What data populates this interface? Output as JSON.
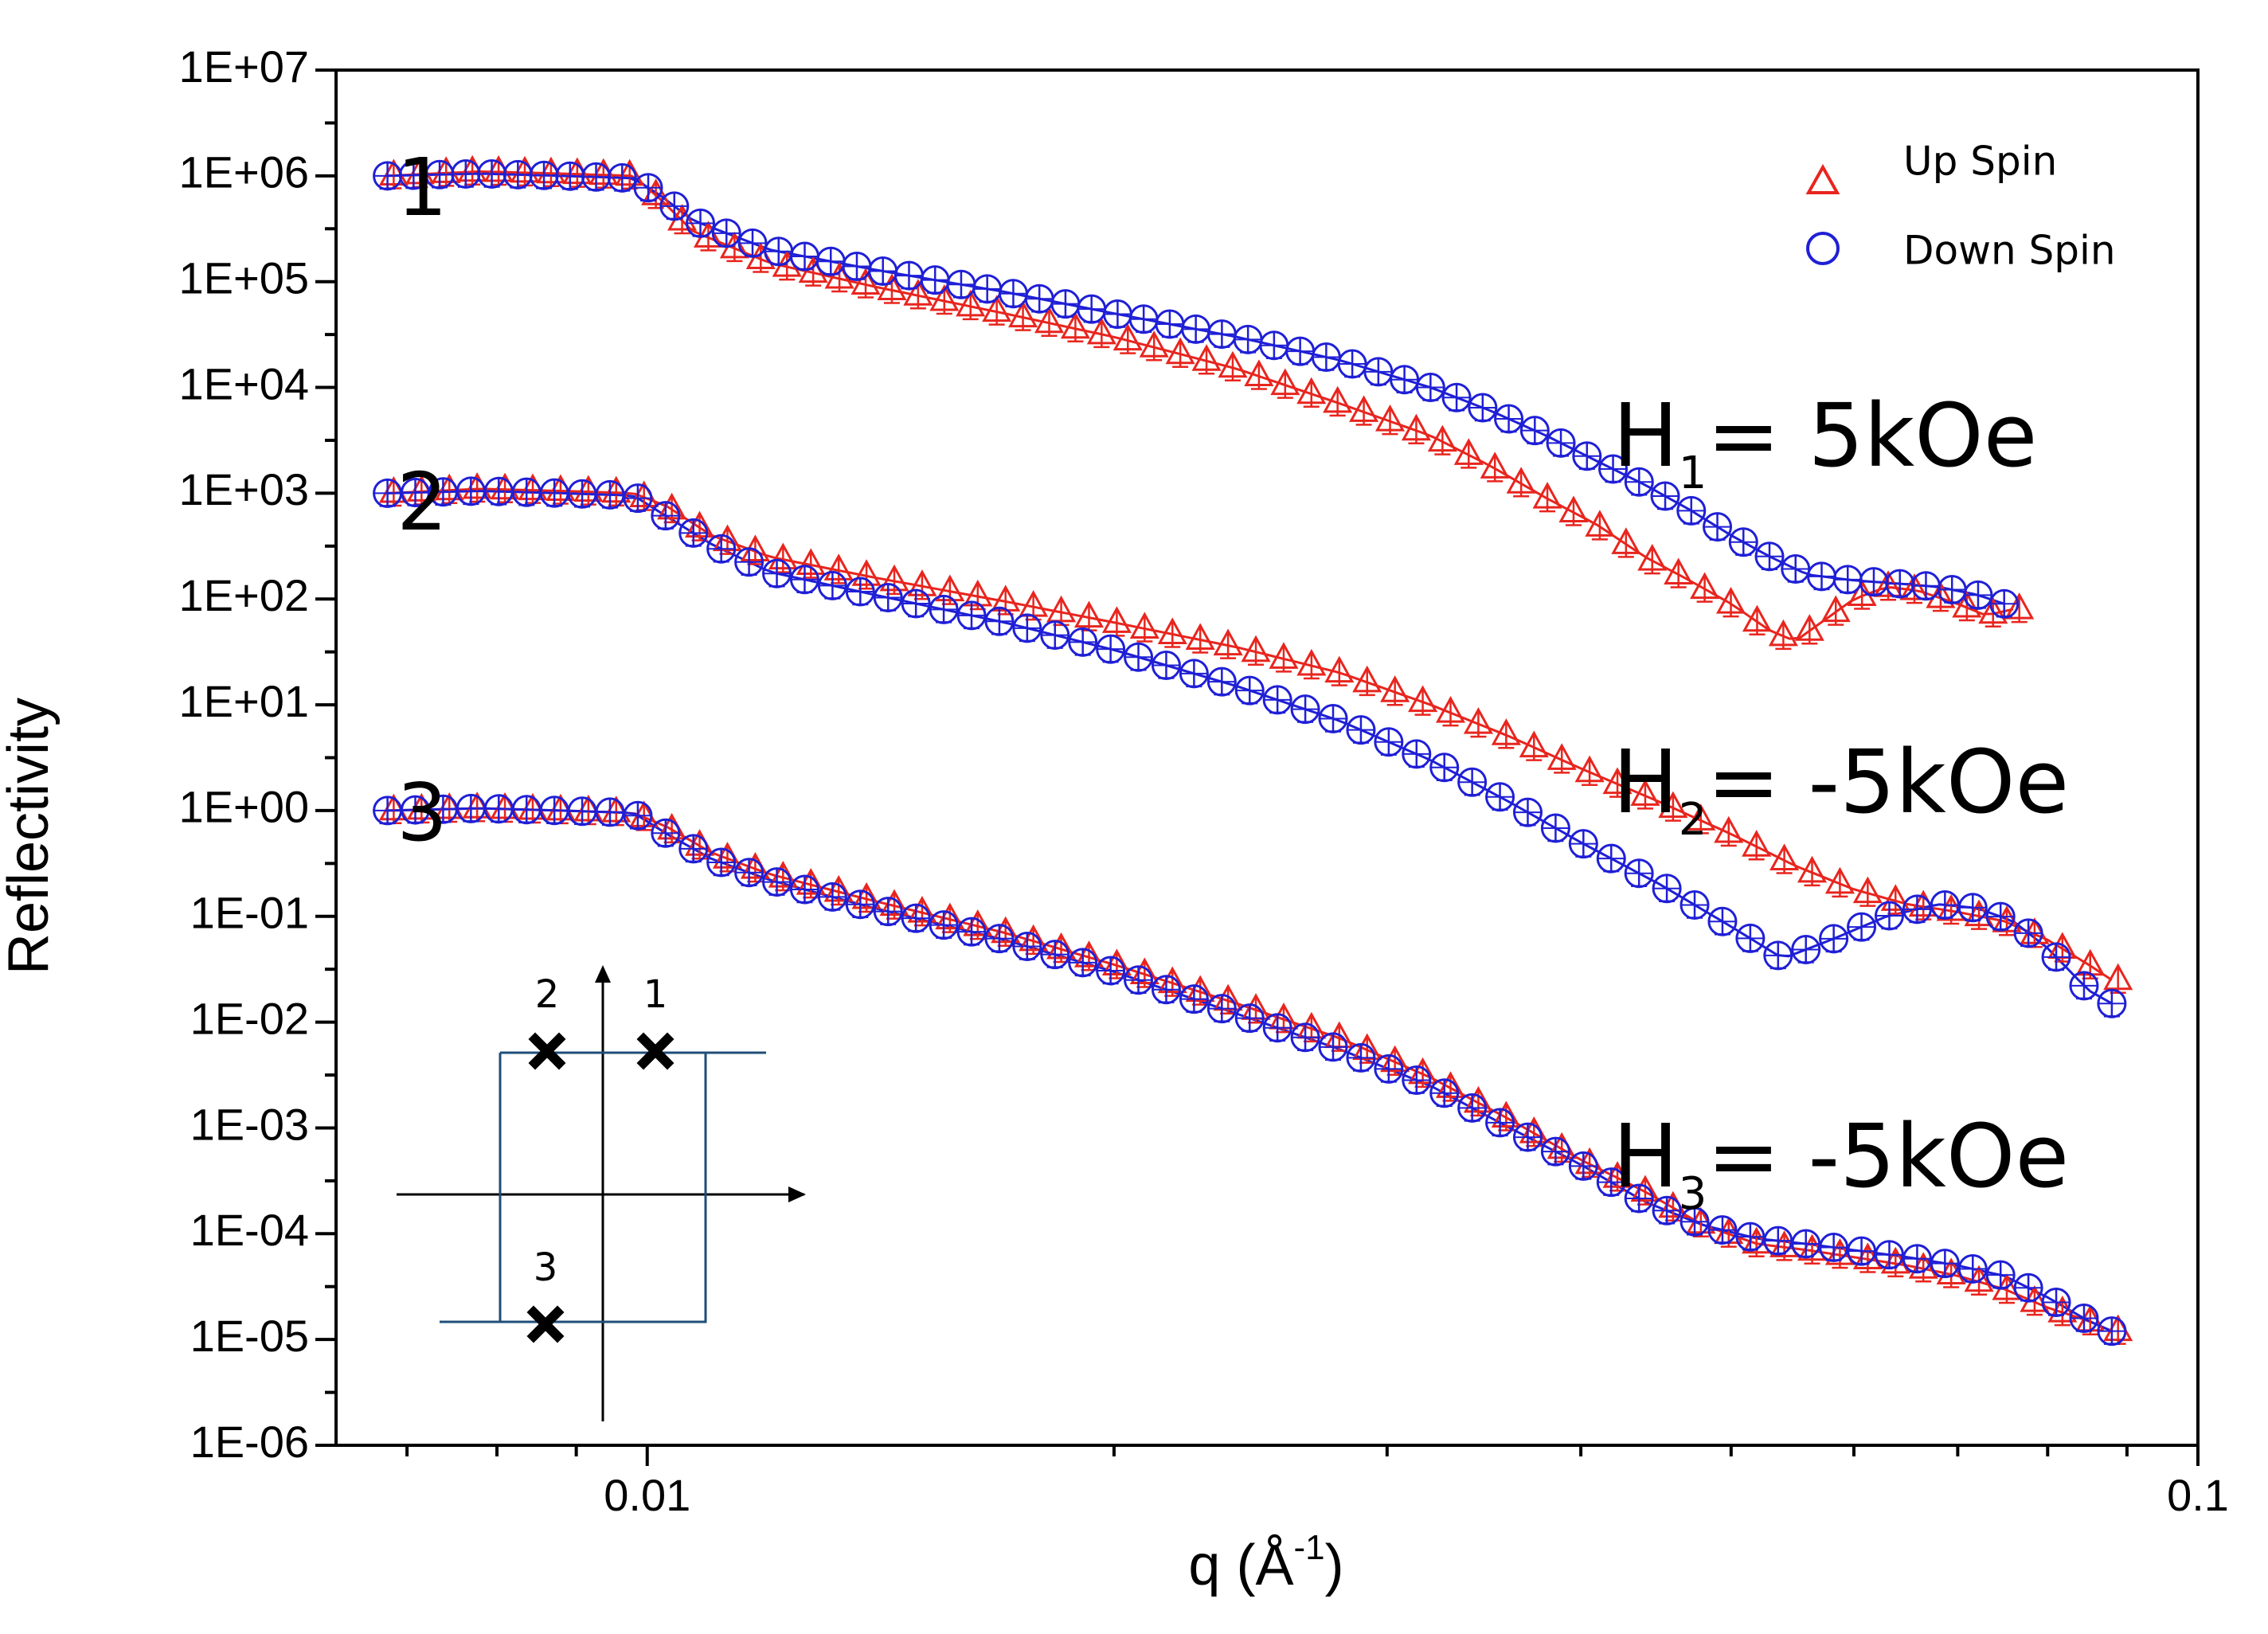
{
  "chart_data": {
    "type": "scatter",
    "xscale": "log",
    "yscale": "log",
    "xlim": [
      0.0063,
      0.1
    ],
    "ylim": [
      1e-06,
      10000000
    ],
    "xlabel": "q (Å",
    "xlabel_sup": "-1",
    "xlabel_close": ")",
    "ylabel": "Reflectivity",
    "x_tick_labels": [
      {
        "value": 0.01,
        "label": "0.01"
      },
      {
        "value": 0.1,
        "label": "0.1"
      }
    ],
    "y_tick_labels": [
      "1E-06",
      "1E-05",
      "1E-04",
      "1E-03",
      "1E-02",
      "1E-01",
      "1E+00",
      "1E+01",
      "1E+02",
      "1E+03",
      "1E+04",
      "1E+05",
      "1E+06",
      "1E+07"
    ],
    "legend": {
      "position": "top-right",
      "entries": [
        {
          "label": "Up Spin",
          "marker": "triangle",
          "color": "#e8251e"
        },
        {
          "label": "Down Spin",
          "marker": "circle",
          "color": "#1f1fd6"
        }
      ]
    },
    "colors": {
      "up": "#e8251e",
      "down": "#1f1fd6",
      "inset": "#1f4e79"
    },
    "curve_labels": [
      {
        "id": "1",
        "text": "1"
      },
      {
        "id": "2",
        "text": "2"
      },
      {
        "id": "3",
        "text": "3"
      }
    ],
    "field_labels": [
      {
        "main": "H",
        "sub": "1",
        "rest": "= 5kOe"
      },
      {
        "main": "H",
        "sub": "2",
        "rest": "= -5kOe"
      },
      {
        "main": "H",
        "sub": "3",
        "rest": "= -5kOe"
      }
    ],
    "inset": {
      "description": "hysteresis loop sketch",
      "points": [
        {
          "label": "1",
          "quadrant": "upper-right"
        },
        {
          "label": "2",
          "quadrant": "upper-left"
        },
        {
          "label": "3",
          "quadrant": "lower-left"
        }
      ]
    },
    "series_sets": [
      {
        "offset_label": "1",
        "up": {
          "name": "Up Spin",
          "points": [
            [
              0.0068,
              1000000
            ],
            [
              0.0078,
              1100000
            ],
            [
              0.0088,
              1050000
            ],
            [
              0.0098,
              1000000
            ],
            [
              0.0102,
              600000
            ],
            [
              0.0107,
              300000
            ],
            [
              0.012,
              150000
            ],
            [
              0.014,
              90000
            ],
            [
              0.017,
              50000
            ],
            [
              0.02,
              30000
            ],
            [
              0.024,
              15000
            ],
            [
              0.028,
              7000
            ],
            [
              0.032,
              3500
            ],
            [
              0.035,
              1800
            ],
            [
              0.038,
              900
            ],
            [
              0.041,
              500
            ],
            [
              0.044,
              250
            ],
            [
              0.047,
              150
            ],
            [
              0.05,
              90
            ],
            [
              0.053,
              50
            ],
            [
              0.055,
              40
            ],
            [
              0.058,
              70
            ],
            [
              0.06,
              100
            ],
            [
              0.063,
              130
            ],
            [
              0.066,
              120
            ],
            [
              0.07,
              90
            ],
            [
              0.073,
              70
            ],
            [
              0.076,
              80
            ]
          ]
        },
        "down": {
          "name": "Down Spin",
          "points": [
            [
              0.0068,
              1000000
            ],
            [
              0.0078,
              1050000
            ],
            [
              0.0088,
              1000000
            ],
            [
              0.0098,
              950000
            ],
            [
              0.0102,
              650000
            ],
            [
              0.0107,
              380000
            ],
            [
              0.012,
              200000
            ],
            [
              0.014,
              130000
            ],
            [
              0.017,
              80000
            ],
            [
              0.02,
              50000
            ],
            [
              0.024,
              30000
            ],
            [
              0.028,
              18000
            ],
            [
              0.032,
              10000
            ],
            [
              0.035,
              6000
            ],
            [
              0.038,
              3500
            ],
            [
              0.041,
              2000
            ],
            [
              0.044,
              1200
            ],
            [
              0.047,
              700
            ],
            [
              0.05,
              400
            ],
            [
              0.053,
              250
            ],
            [
              0.056,
              170
            ],
            [
              0.06,
              150
            ],
            [
              0.064,
              140
            ],
            [
              0.068,
              130
            ],
            [
              0.072,
              110
            ],
            [
              0.075,
              90
            ]
          ]
        }
      },
      {
        "offset_label": "2",
        "up": {
          "name": "Up Spin",
          "points": [
            [
              0.0068,
              1000
            ],
            [
              0.0078,
              1100
            ],
            [
              0.0088,
              1050
            ],
            [
              0.0098,
              1000
            ],
            [
              0.0103,
              750
            ],
            [
              0.011,
              400
            ],
            [
              0.012,
              250
            ],
            [
              0.014,
              160
            ],
            [
              0.017,
              95
            ],
            [
              0.02,
              60
            ],
            [
              0.024,
              35
            ],
            [
              0.028,
              20
            ],
            [
              0.032,
              10
            ],
            [
              0.036,
              5
            ],
            [
              0.04,
              2.5
            ],
            [
              0.045,
              1.2
            ],
            [
              0.05,
              0.6
            ],
            [
              0.055,
              0.3
            ],
            [
              0.06,
              0.18
            ],
            [
              0.065,
              0.13
            ],
            [
              0.07,
              0.11
            ],
            [
              0.075,
              0.09
            ],
            [
              0.08,
              0.06
            ],
            [
              0.085,
              0.035
            ],
            [
              0.088,
              0.025
            ]
          ]
        },
        "down": {
          "name": "Down Spin",
          "points": [
            [
              0.0068,
              1000
            ],
            [
              0.0078,
              1050
            ],
            [
              0.0088,
              1000
            ],
            [
              0.0098,
              950
            ],
            [
              0.0103,
              600
            ],
            [
              0.011,
              330
            ],
            [
              0.012,
              180
            ],
            [
              0.014,
              110
            ],
            [
              0.017,
              60
            ],
            [
              0.02,
              33
            ],
            [
              0.024,
              15
            ],
            [
              0.028,
              7
            ],
            [
              0.032,
              3
            ],
            [
              0.036,
              1.2
            ],
            [
              0.04,
              0.5
            ],
            [
              0.045,
              0.2
            ],
            [
              0.05,
              0.08
            ],
            [
              0.054,
              0.04
            ],
            [
              0.058,
              0.06
            ],
            [
              0.063,
              0.1
            ],
            [
              0.068,
              0.13
            ],
            [
              0.072,
              0.12
            ],
            [
              0.076,
              0.09
            ],
            [
              0.08,
              0.05
            ],
            [
              0.085,
              0.02
            ],
            [
              0.088,
              0.015
            ]
          ]
        }
      },
      {
        "offset_label": "3",
        "up": {
          "name": "Up Spin",
          "points": [
            [
              0.0068,
              1
            ],
            [
              0.0078,
              1.05
            ],
            [
              0.0088,
              1
            ],
            [
              0.0098,
              0.95
            ],
            [
              0.0103,
              0.7
            ],
            [
              0.011,
              0.4
            ],
            [
              0.012,
              0.25
            ],
            [
              0.014,
              0.14
            ],
            [
              0.017,
              0.07
            ],
            [
              0.02,
              0.035
            ],
            [
              0.024,
              0.015
            ],
            [
              0.028,
              0.007
            ],
            [
              0.032,
              0.003
            ],
            [
              0.036,
              0.0012
            ],
            [
              0.04,
              0.0005
            ],
            [
              0.044,
              0.00025
            ],
            [
              0.048,
              0.00012
            ],
            [
              0.052,
              8e-05
            ],
            [
              0.056,
              7e-05
            ],
            [
              0.06,
              6e-05
            ],
            [
              0.065,
              5e-05
            ],
            [
              0.07,
              4e-05
            ],
            [
              0.075,
              3e-05
            ],
            [
              0.08,
              2e-05
            ],
            [
              0.085,
              1.5e-05
            ],
            [
              0.088,
              1.2e-05
            ]
          ]
        },
        "down": {
          "name": "Down Spin",
          "points": [
            [
              0.0068,
              1
            ],
            [
              0.0078,
              1.05
            ],
            [
              0.0088,
              1
            ],
            [
              0.0098,
              0.95
            ],
            [
              0.0103,
              0.6
            ],
            [
              0.011,
              0.35
            ],
            [
              0.012,
              0.22
            ],
            [
              0.014,
              0.12
            ],
            [
              0.017,
              0.06
            ],
            [
              0.02,
              0.03
            ],
            [
              0.024,
              0.012
            ],
            [
              0.028,
              0.0055
            ],
            [
              0.032,
              0.0025
            ],
            [
              0.036,
              0.001
            ],
            [
              0.04,
              0.00045
            ],
            [
              0.044,
              0.0002
            ],
            [
              0.048,
              0.00012
            ],
            [
              0.052,
              9e-05
            ],
            [
              0.056,
              8e-05
            ],
            [
              0.06,
              7e-05
            ],
            [
              0.065,
              6e-05
            ],
            [
              0.07,
              5e-05
            ],
            [
              0.075,
              4e-05
            ],
            [
              0.08,
              2.5e-05
            ],
            [
              0.085,
              1.5e-05
            ],
            [
              0.088,
              1.2e-05
            ]
          ]
        }
      }
    ]
  }
}
